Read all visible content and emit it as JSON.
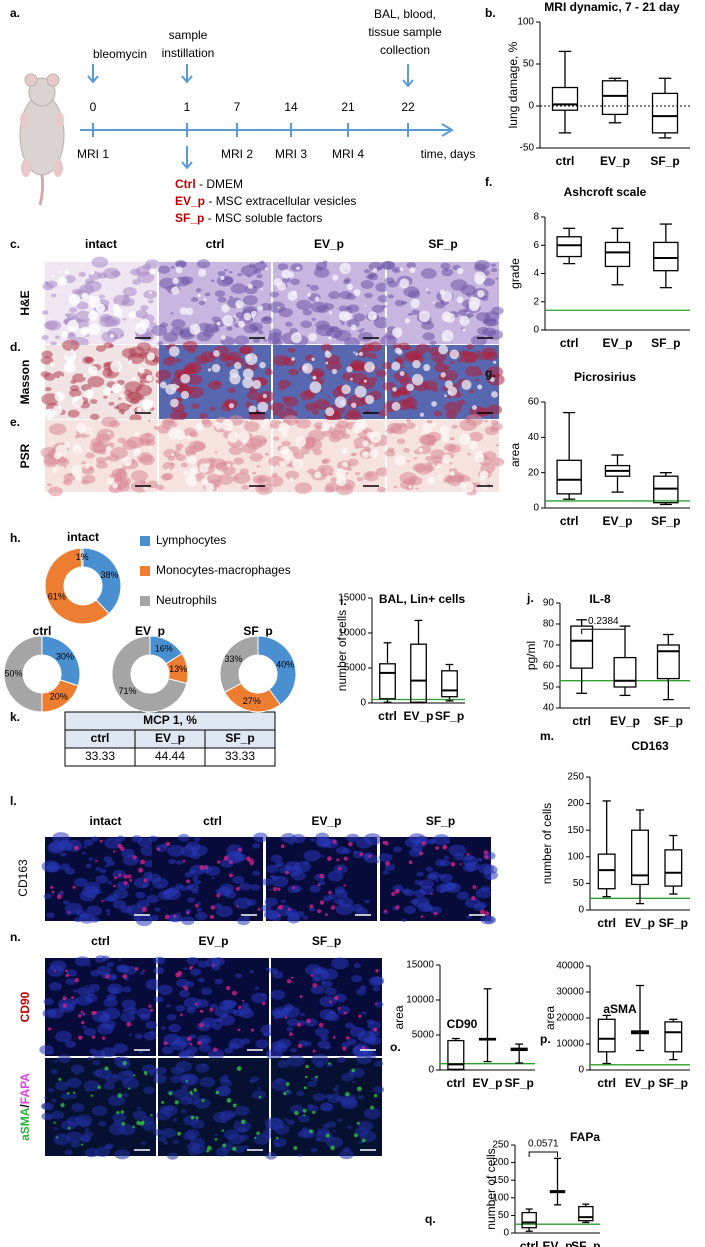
{
  "timeline": {
    "label": "a.",
    "days": [
      0,
      1,
      7,
      14,
      21,
      22
    ],
    "mri": [
      "MRI 1",
      "MRI 2",
      "MRI 3",
      "MRI 4"
    ],
    "axis_label": "time, days",
    "bleomycin": "bleomycin",
    "instillation": [
      "sample",
      "instillation"
    ],
    "collection": [
      "BAL, blood,",
      "tissue sample",
      "collection"
    ],
    "groups": [
      {
        "name": "Ctrl",
        "desc": "- DMEM"
      },
      {
        "name": "EV_p",
        "desc": "- MSC extracellular vesicles"
      },
      {
        "name": "SF_p",
        "desc": "- MSC soluble factors"
      }
    ]
  },
  "histology": {
    "labels": [
      "c.",
      "d.",
      "e."
    ],
    "columns": [
      "intact",
      "ctrl",
      "EV_p",
      "SF_p"
    ],
    "rows": [
      "H&E",
      "Masson",
      "PSR"
    ]
  },
  "cd163_images": {
    "label": "l.",
    "columns": [
      "intact",
      "ctrl",
      "EV_p",
      "SF_p"
    ],
    "row": "CD163"
  },
  "fibrosis_images": {
    "label": "n.",
    "columns": [
      "ctrl",
      "EV_p",
      "SF_p"
    ],
    "rows": [
      [
        "CD90"
      ],
      [
        "aSMA",
        "/",
        "FAPA"
      ]
    ]
  },
  "table": {
    "label": "k.",
    "title": "MCP 1, %",
    "header": [
      "ctrl",
      "EV_p",
      "SF_p"
    ],
    "row": [
      33.33,
      44.44,
      33.33
    ]
  },
  "chart_data": [
    {
      "type": "box",
      "label": "b.",
      "title": "MRI dynamic, 7 - 21 day",
      "ylabel": "lung damage, %",
      "categories": [
        "ctrl",
        "EV_p",
        "SF_p"
      ],
      "boxes": [
        {
          "min": -32,
          "q1": -5,
          "median": 2,
          "q3": 22,
          "max": 65
        },
        {
          "min": -20,
          "q1": -10,
          "median": 12,
          "q3": 30,
          "max": 33
        },
        {
          "min": -38,
          "q1": -32,
          "median": -12,
          "q3": 15,
          "max": 33
        }
      ],
      "ylim": [
        -50,
        100
      ],
      "yticks": [
        -50,
        0,
        50,
        100
      ],
      "hline": {
        "value": 0,
        "color": "#000000",
        "style": "dotted"
      }
    },
    {
      "type": "box",
      "label": "f.",
      "title": "Ashcroft scale",
      "ylabel": "grade",
      "categories": [
        "ctrl",
        "EV_p",
        "SF_p"
      ],
      "boxes": [
        {
          "min": 4.7,
          "q1": 5.2,
          "median": 6.0,
          "q3": 6.6,
          "max": 7.2
        },
        {
          "min": 3.2,
          "q1": 4.5,
          "median": 5.5,
          "q3": 6.2,
          "max": 7.2
        },
        {
          "min": 3.0,
          "q1": 4.2,
          "median": 5.1,
          "q3": 6.2,
          "max": 7.5
        }
      ],
      "ylim": [
        0,
        8
      ],
      "yticks": [
        0,
        2,
        4,
        6,
        8
      ],
      "hline": {
        "value": 1.4,
        "color": "#2ca02c",
        "style": "solid"
      }
    },
    {
      "type": "box",
      "label": "g.",
      "title": "Picrosirius",
      "ylabel": "area",
      "categories": [
        "ctrl",
        "EV_p",
        "SF_p"
      ],
      "boxes": [
        {
          "min": 5,
          "q1": 8,
          "median": 16,
          "q3": 27,
          "max": 54
        },
        {
          "min": 9,
          "q1": 18,
          "median": 21,
          "q3": 24,
          "max": 30
        },
        {
          "min": 2,
          "q1": 3,
          "median": 11,
          "q3": 18,
          "max": 20
        }
      ],
      "ylim": [
        0,
        60
      ],
      "yticks": [
        0,
        20,
        40,
        60
      ],
      "hline": {
        "value": 4,
        "color": "#2ca02c",
        "style": "solid"
      }
    },
    {
      "type": "box",
      "label": "i.",
      "title": "BAL, Lin+ cells",
      "ylabel": "number of cells",
      "categories": [
        "ctrl",
        "EV_p",
        "SF_p"
      ],
      "boxes": [
        {
          "min": 100,
          "q1": 600,
          "median": 4300,
          "q3": 5600,
          "max": 8600
        },
        {
          "min": 100,
          "q1": 100,
          "median": 3200,
          "q3": 8400,
          "max": 11800
        },
        {
          "min": 300,
          "q1": 900,
          "median": 1800,
          "q3": 4600,
          "max": 5500
        }
      ],
      "ylim": [
        0,
        15000
      ],
      "yticks": [
        0,
        5000,
        10000,
        15000
      ],
      "hline": {
        "value": 500,
        "color": "#2ca02c",
        "style": "solid"
      }
    },
    {
      "type": "box",
      "label": "j.",
      "title": "IL-8",
      "ylabel": "pg/ml",
      "categories": [
        "ctrl",
        "EV_p",
        "SF_p"
      ],
      "boxes": [
        {
          "min": 47,
          "q1": 59,
          "median": 72,
          "q3": 79,
          "max": 82
        },
        {
          "min": 46,
          "q1": 50,
          "median": 53,
          "q3": 64,
          "max": 79
        },
        {
          "min": 44,
          "q1": 54,
          "median": 67,
          "q3": 70,
          "max": 75
        }
      ],
      "ylim": [
        40,
        90
      ],
      "yticks": [
        40,
        50,
        60,
        70,
        80,
        90
      ],
      "hline": {
        "value": 53,
        "color": "#2ca02c",
        "style": "solid"
      },
      "annotation": "0.2384"
    },
    {
      "type": "box",
      "label": "m.",
      "title": "CD163",
      "ylabel": "number of cells",
      "categories": [
        "ctrl",
        "EV_p",
        "SF_p"
      ],
      "boxes": [
        {
          "min": 25,
          "q1": 40,
          "median": 75,
          "q3": 105,
          "max": 205
        },
        {
          "min": 12,
          "q1": 48,
          "median": 65,
          "q3": 150,
          "max": 188
        },
        {
          "min": 30,
          "q1": 45,
          "median": 70,
          "q3": 113,
          "max": 140
        }
      ],
      "ylim": [
        0,
        250
      ],
      "yticks": [
        0,
        50,
        100,
        150,
        200,
        250
      ],
      "hline": {
        "value": 22,
        "color": "#2ca02c",
        "style": "solid"
      }
    },
    {
      "type": "box",
      "label": "o.",
      "title": "CD90",
      "ylabel": "area",
      "categories": [
        "ctrl",
        "EV_p",
        "SF_p"
      ],
      "boxes": [
        {
          "min": 0,
          "q1": 100,
          "median": 800,
          "q3": 4200,
          "max": 4500
        },
        {
          "min": 1200,
          "q1": 4300,
          "median": 4400,
          "q3": 4500,
          "max": 11600
        },
        {
          "min": 1000,
          "q1": 2800,
          "median": 3000,
          "q3": 3100,
          "max": 3700
        }
      ],
      "ylim": [
        0,
        15000
      ],
      "yticks": [
        0,
        5000,
        10000,
        15000
      ],
      "hline": {
        "value": 900,
        "color": "#2ca02c",
        "style": "solid"
      }
    },
    {
      "type": "box",
      "label": "p.",
      "title": "aSMA",
      "ylabel": "area",
      "categories": [
        "ctrl",
        "EV_p",
        "SF_p"
      ],
      "boxes": [
        {
          "min": 2500,
          "q1": 7000,
          "median": 12000,
          "q3": 19500,
          "max": 21000
        },
        {
          "min": 7500,
          "q1": 14000,
          "median": 14500,
          "q3": 15000,
          "max": 32500
        },
        {
          "min": 4000,
          "q1": 7000,
          "median": 14500,
          "q3": 18500,
          "max": 19500
        }
      ],
      "ylim": [
        0,
        40000
      ],
      "yticks": [
        0,
        10000,
        20000,
        30000,
        40000
      ],
      "hline": {
        "value": 2000,
        "color": "#2ca02c",
        "style": "solid"
      }
    },
    {
      "type": "box",
      "label": "q.",
      "title": "FAPa",
      "ylabel": "number of cells",
      "categories": [
        "ctrl",
        "EV_p",
        "SF_p"
      ],
      "boxes": [
        {
          "min": 5,
          "q1": 15,
          "median": 30,
          "q3": 58,
          "max": 68
        },
        {
          "min": 80,
          "q1": 115,
          "median": 118,
          "q3": 120,
          "max": 212
        },
        {
          "min": 30,
          "q1": 35,
          "median": 45,
          "q3": 75,
          "max": 82
        }
      ],
      "ylim": [
        0,
        250
      ],
      "yticks": [
        0,
        50,
        100,
        150,
        200,
        250
      ],
      "hline": {
        "value": 25,
        "color": "#2ca02c",
        "style": "solid"
      },
      "annotation": "0.0571"
    },
    {
      "type": "donut",
      "label": "h.",
      "title": "intact",
      "categories": [
        "Lymphocytes",
        "Monocytes-macrophages",
        "Neutrophils"
      ],
      "colors": [
        "#4a90d0",
        "#ed7d31",
        "#a5a5a5"
      ],
      "values": [
        38,
        61,
        1
      ],
      "value_labels": [
        "38%",
        "61%",
        "1%"
      ]
    },
    {
      "type": "donut",
      "title": "ctrl",
      "colors": [
        "#4a90d0",
        "#ed7d31",
        "#a5a5a5"
      ],
      "values": [
        30,
        20,
        50
      ],
      "value_labels": [
        "30%",
        "20%",
        "50%"
      ]
    },
    {
      "type": "donut",
      "title": "EV_p",
      "colors": [
        "#4a90d0",
        "#ed7d31",
        "#a5a5a5"
      ],
      "values": [
        16,
        13,
        71
      ],
      "value_labels": [
        "16%",
        "13%",
        "71%"
      ]
    },
    {
      "type": "donut",
      "title": "SF_p",
      "colors": [
        "#4a90d0",
        "#ed7d31",
        "#a5a5a5"
      ],
      "values": [
        40,
        27,
        33
      ],
      "value_labels": [
        "40%",
        "27%",
        "33%"
      ]
    }
  ]
}
